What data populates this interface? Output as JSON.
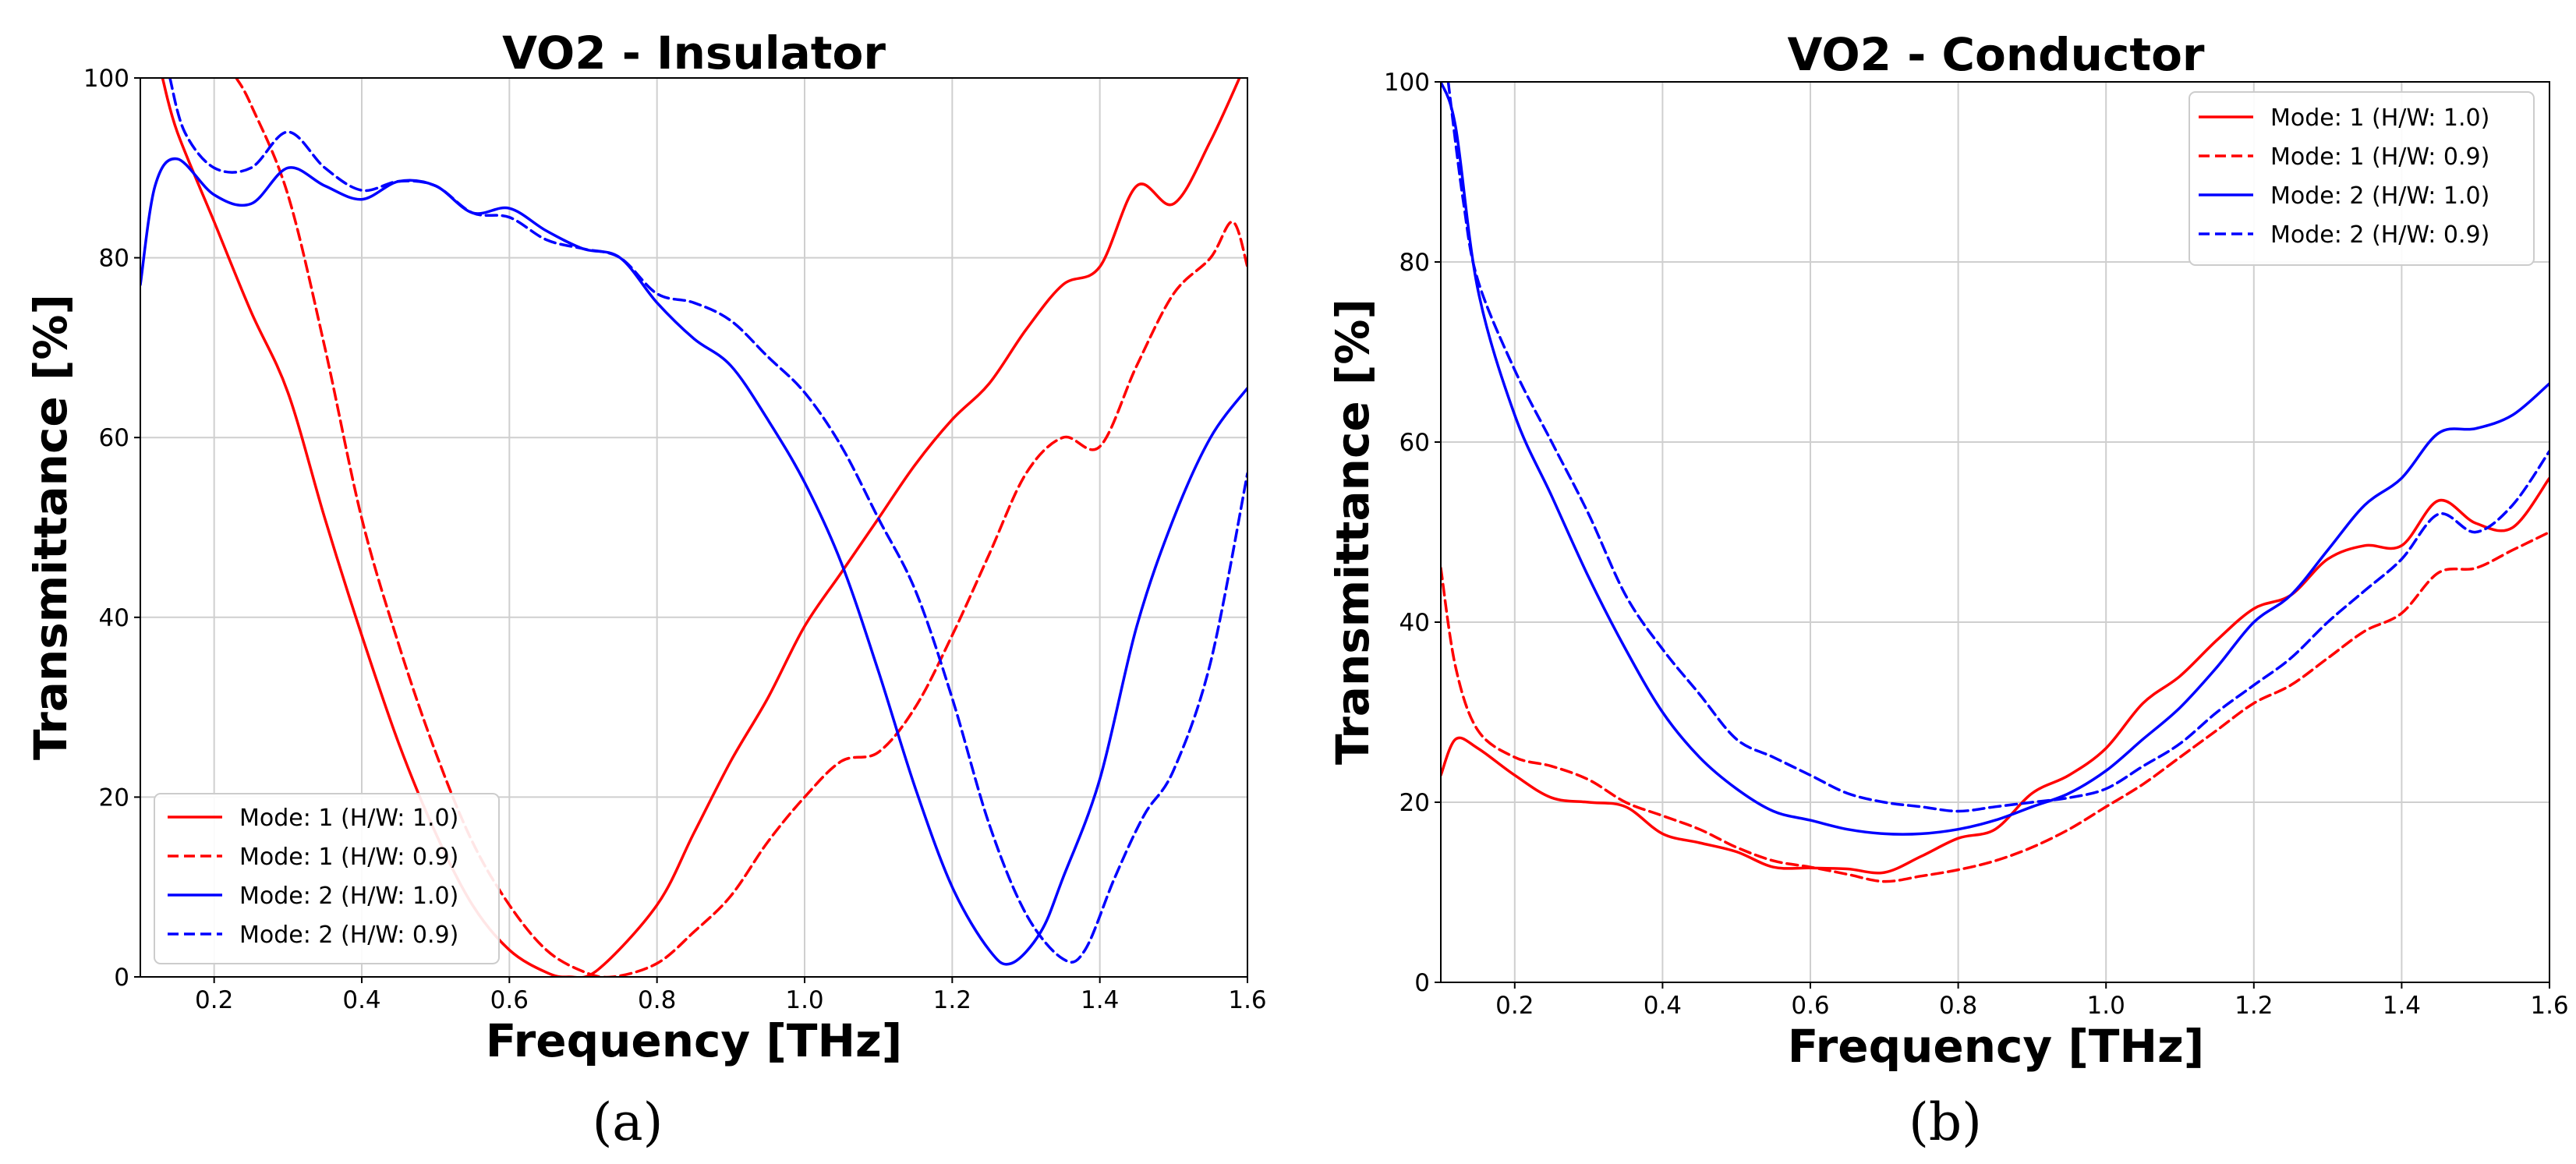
{
  "chart_data": [
    {
      "type": "line",
      "title": "VO2 - Insulator",
      "xlabel": "Frequency [THz]",
      "ylabel": "Transmittance [%]",
      "caption": "(a)",
      "xlim": [
        0.1,
        1.6
      ],
      "ylim": [
        0,
        100
      ],
      "xticks": [
        "0.2",
        "0.4",
        "0.6",
        "0.8",
        "1.0",
        "1.2",
        "1.4",
        "1.6"
      ],
      "yticks": [
        "0",
        "20",
        "40",
        "60",
        "80",
        "100"
      ],
      "grid": true,
      "legend_position": "lower-left",
      "series": [
        {
          "name": "Mode: 1 (H/W: 1.0)",
          "color": "#ff0000",
          "dash": "solid",
          "points": [
            [
              0.13,
              100
            ],
            [
              0.15,
              94
            ],
            [
              0.2,
              84
            ],
            [
              0.25,
              74
            ],
            [
              0.3,
              65
            ],
            [
              0.35,
              51
            ],
            [
              0.4,
              38
            ],
            [
              0.45,
              26
            ],
            [
              0.5,
              16
            ],
            [
              0.55,
              8
            ],
            [
              0.6,
              3
            ],
            [
              0.65,
              0.5
            ],
            [
              0.68,
              0
            ],
            [
              0.72,
              0.8
            ],
            [
              0.8,
              8
            ],
            [
              0.85,
              16
            ],
            [
              0.9,
              24
            ],
            [
              0.95,
              31
            ],
            [
              1.0,
              39
            ],
            [
              1.05,
              45
            ],
            [
              1.1,
              51
            ],
            [
              1.15,
              57
            ],
            [
              1.2,
              62
            ],
            [
              1.25,
              66
            ],
            [
              1.3,
              72
            ],
            [
              1.35,
              77
            ],
            [
              1.4,
              79
            ],
            [
              1.45,
              88
            ],
            [
              1.5,
              86
            ],
            [
              1.55,
              93
            ],
            [
              1.6,
              102
            ]
          ]
        },
        {
          "name": "Mode: 1 (H/W: 0.9)",
          "color": "#ff0000",
          "dash": "dashed",
          "points": [
            [
              0.23,
              100
            ],
            [
              0.25,
              97
            ],
            [
              0.3,
              87
            ],
            [
              0.35,
              70
            ],
            [
              0.4,
              51
            ],
            [
              0.45,
              37
            ],
            [
              0.5,
              25
            ],
            [
              0.55,
              15
            ],
            [
              0.6,
              8
            ],
            [
              0.65,
              3
            ],
            [
              0.7,
              0.6
            ],
            [
              0.74,
              0
            ],
            [
              0.8,
              1.5
            ],
            [
              0.85,
              5
            ],
            [
              0.9,
              9
            ],
            [
              0.95,
              15
            ],
            [
              1.0,
              20
            ],
            [
              1.05,
              24
            ],
            [
              1.1,
              25
            ],
            [
              1.15,
              30
            ],
            [
              1.2,
              38
            ],
            [
              1.25,
              47
            ],
            [
              1.3,
              56
            ],
            [
              1.35,
              60
            ],
            [
              1.4,
              59
            ],
            [
              1.45,
              68
            ],
            [
              1.5,
              76
            ],
            [
              1.55,
              80
            ],
            [
              1.58,
              84
            ],
            [
              1.6,
              79
            ]
          ]
        },
        {
          "name": "Mode: 2 (H/W: 1.0)",
          "color": "#0000ff",
          "dash": "solid",
          "points": [
            [
              0.1,
              77
            ],
            [
              0.12,
              88
            ],
            [
              0.15,
              91
            ],
            [
              0.2,
              87
            ],
            [
              0.25,
              86
            ],
            [
              0.3,
              90
            ],
            [
              0.35,
              88
            ],
            [
              0.4,
              86.5
            ],
            [
              0.45,
              88.5
            ],
            [
              0.5,
              88
            ],
            [
              0.55,
              85
            ],
            [
              0.6,
              85.5
            ],
            [
              0.65,
              83
            ],
            [
              0.7,
              81
            ],
            [
              0.75,
              80
            ],
            [
              0.8,
              75
            ],
            [
              0.85,
              71
            ],
            [
              0.9,
              68
            ],
            [
              0.95,
              62
            ],
            [
              1.0,
              55
            ],
            [
              1.05,
              46
            ],
            [
              1.1,
              34
            ],
            [
              1.15,
              21
            ],
            [
              1.2,
              10
            ],
            [
              1.25,
              3
            ],
            [
              1.28,
              1.5
            ],
            [
              1.32,
              5
            ],
            [
              1.35,
              11
            ],
            [
              1.4,
              22
            ],
            [
              1.45,
              39
            ],
            [
              1.5,
              51
            ],
            [
              1.55,
              60
            ],
            [
              1.6,
              65.5
            ]
          ]
        },
        {
          "name": "Mode: 2 (H/W: 0.9)",
          "color": "#0000ff",
          "dash": "dashed",
          "points": [
            [
              0.14,
              100
            ],
            [
              0.16,
              94
            ],
            [
              0.2,
              90
            ],
            [
              0.25,
              90
            ],
            [
              0.3,
              94
            ],
            [
              0.35,
              90
            ],
            [
              0.4,
              87.5
            ],
            [
              0.45,
              88.5
            ],
            [
              0.5,
              88
            ],
            [
              0.55,
              85
            ],
            [
              0.6,
              84.5
            ],
            [
              0.65,
              82
            ],
            [
              0.7,
              81
            ],
            [
              0.75,
              80
            ],
            [
              0.8,
              76
            ],
            [
              0.85,
              75
            ],
            [
              0.9,
              73
            ],
            [
              0.95,
              69
            ],
            [
              1.0,
              65
            ],
            [
              1.05,
              59
            ],
            [
              1.1,
              51
            ],
            [
              1.15,
              43
            ],
            [
              1.2,
              31
            ],
            [
              1.25,
              17
            ],
            [
              1.3,
              7
            ],
            [
              1.35,
              2
            ],
            [
              1.38,
              3
            ],
            [
              1.42,
              11
            ],
            [
              1.46,
              18
            ],
            [
              1.5,
              23
            ],
            [
              1.55,
              35
            ],
            [
              1.6,
              56
            ]
          ]
        }
      ]
    },
    {
      "type": "line",
      "title": "VO2 - Conductor",
      "xlabel": "Frequency [THz]",
      "ylabel": "Transmittance [%]",
      "caption": "(b)",
      "xlim": [
        0.1,
        1.6
      ],
      "ylim": [
        0,
        100
      ],
      "xticks": [
        "0.2",
        "0.4",
        "0.6",
        "0.8",
        "1.0",
        "1.2",
        "1.4",
        "1.6"
      ],
      "yticks": [
        "0",
        "20",
        "40",
        "60",
        "80",
        "100"
      ],
      "grid": true,
      "legend_position": "upper-right",
      "series": [
        {
          "name": "Mode: 1 (H/W: 1.0)",
          "color": "#ff0000",
          "dash": "solid",
          "points": [
            [
              0.1,
              23
            ],
            [
              0.12,
              27
            ],
            [
              0.15,
              26
            ],
            [
              0.2,
              23
            ],
            [
              0.25,
              20.5
            ],
            [
              0.3,
              20
            ],
            [
              0.35,
              19.5
            ],
            [
              0.4,
              16.5
            ],
            [
              0.45,
              15.5
            ],
            [
              0.5,
              14.5
            ],
            [
              0.55,
              12.8
            ],
            [
              0.6,
              12.7
            ],
            [
              0.65,
              12.6
            ],
            [
              0.7,
              12.2
            ],
            [
              0.75,
              14
            ],
            [
              0.8,
              16
            ],
            [
              0.85,
              17
            ],
            [
              0.9,
              21
            ],
            [
              0.95,
              23
            ],
            [
              1.0,
              26
            ],
            [
              1.05,
              31
            ],
            [
              1.1,
              34
            ],
            [
              1.15,
              38
            ],
            [
              1.2,
              41.5
            ],
            [
              1.25,
              43
            ],
            [
              1.3,
              47
            ],
            [
              1.35,
              48.5
            ],
            [
              1.4,
              48.5
            ],
            [
              1.45,
              53.5
            ],
            [
              1.5,
              51
            ],
            [
              1.55,
              50.5
            ],
            [
              1.6,
              56
            ]
          ]
        },
        {
          "name": "Mode: 1 (H/W: 0.9)",
          "color": "#ff0000",
          "dash": "dashed",
          "points": [
            [
              0.1,
              46
            ],
            [
              0.12,
              35
            ],
            [
              0.15,
              28
            ],
            [
              0.2,
              25
            ],
            [
              0.25,
              24
            ],
            [
              0.3,
              22.5
            ],
            [
              0.35,
              20
            ],
            [
              0.4,
              18.5
            ],
            [
              0.45,
              17
            ],
            [
              0.5,
              15
            ],
            [
              0.55,
              13.5
            ],
            [
              0.6,
              12.8
            ],
            [
              0.65,
              12
            ],
            [
              0.7,
              11.2
            ],
            [
              0.75,
              11.8
            ],
            [
              0.8,
              12.5
            ],
            [
              0.85,
              13.5
            ],
            [
              0.9,
              15
            ],
            [
              0.95,
              17
            ],
            [
              1.0,
              19.5
            ],
            [
              1.05,
              22
            ],
            [
              1.1,
              25
            ],
            [
              1.15,
              28
            ],
            [
              1.2,
              31
            ],
            [
              1.25,
              33
            ],
            [
              1.3,
              36
            ],
            [
              1.35,
              39
            ],
            [
              1.4,
              41
            ],
            [
              1.45,
              45.5
            ],
            [
              1.5,
              46
            ],
            [
              1.55,
              48
            ],
            [
              1.6,
              50
            ]
          ]
        },
        {
          "name": "Mode: 2 (H/W: 1.0)",
          "color": "#0000ff",
          "dash": "solid",
          "points": [
            [
              0.1,
              100
            ],
            [
              0.12,
              95
            ],
            [
              0.15,
              77
            ],
            [
              0.2,
              63
            ],
            [
              0.25,
              54
            ],
            [
              0.3,
              45
            ],
            [
              0.35,
              37
            ],
            [
              0.4,
              30
            ],
            [
              0.45,
              25
            ],
            [
              0.5,
              21.5
            ],
            [
              0.55,
              19
            ],
            [
              0.6,
              18
            ],
            [
              0.65,
              17
            ],
            [
              0.7,
              16.5
            ],
            [
              0.75,
              16.5
            ],
            [
              0.8,
              17
            ],
            [
              0.85,
              18
            ],
            [
              0.9,
              19.5
            ],
            [
              0.95,
              21
            ],
            [
              1.0,
              23.5
            ],
            [
              1.05,
              27
            ],
            [
              1.1,
              30.5
            ],
            [
              1.15,
              35
            ],
            [
              1.2,
              40
            ],
            [
              1.25,
              43
            ],
            [
              1.3,
              48
            ],
            [
              1.35,
              53
            ],
            [
              1.4,
              56
            ],
            [
              1.45,
              61
            ],
            [
              1.5,
              61.5
            ],
            [
              1.55,
              63
            ],
            [
              1.6,
              66.5
            ]
          ]
        },
        {
          "name": "Mode: 2 (H/W: 0.9)",
          "color": "#0000ff",
          "dash": "dashed",
          "points": [
            [
              0.11,
              100
            ],
            [
              0.13,
              87
            ],
            [
              0.15,
              78
            ],
            [
              0.2,
              68
            ],
            [
              0.25,
              60
            ],
            [
              0.3,
              52
            ],
            [
              0.35,
              43
            ],
            [
              0.4,
              37
            ],
            [
              0.45,
              32
            ],
            [
              0.5,
              27
            ],
            [
              0.55,
              25
            ],
            [
              0.6,
              23
            ],
            [
              0.65,
              21
            ],
            [
              0.7,
              20
            ],
            [
              0.75,
              19.5
            ],
            [
              0.8,
              19
            ],
            [
              0.85,
              19.5
            ],
            [
              0.9,
              20
            ],
            [
              0.95,
              20.5
            ],
            [
              1.0,
              21.5
            ],
            [
              1.05,
              24
            ],
            [
              1.1,
              26.5
            ],
            [
              1.15,
              30
            ],
            [
              1.2,
              33
            ],
            [
              1.25,
              36
            ],
            [
              1.3,
              40
            ],
            [
              1.35,
              43.5
            ],
            [
              1.4,
              47
            ],
            [
              1.45,
              52
            ],
            [
              1.5,
              50
            ],
            [
              1.55,
              53
            ],
            [
              1.6,
              59
            ]
          ]
        }
      ]
    }
  ]
}
